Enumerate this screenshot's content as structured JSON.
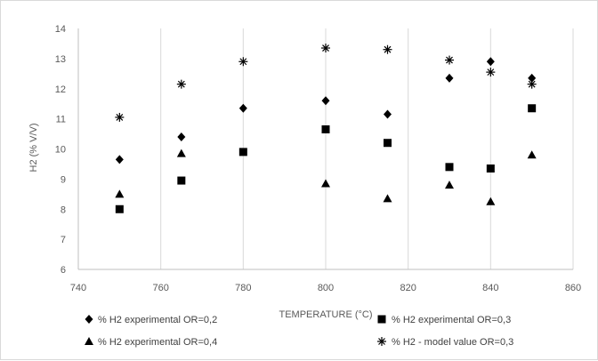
{
  "chart_data": {
    "type": "scatter",
    "title": "",
    "xlabel": "TEMPERATURE (°C)",
    "ylabel": "H2 (% V/V)",
    "xlim": [
      740,
      860
    ],
    "ylim": [
      6,
      14
    ],
    "x_ticks": [
      "740",
      "760",
      "780",
      "800",
      "820",
      "840",
      "860"
    ],
    "y_ticks": [
      "6",
      "7",
      "8",
      "9",
      "10",
      "11",
      "12",
      "13",
      "14"
    ],
    "grid": "vertical",
    "legend_position": "bottom",
    "series": [
      {
        "name": "% H2 experimental OR=0,2",
        "marker": "diamond",
        "color": "#000000",
        "points": [
          [
            750,
            9.65
          ],
          [
            765,
            10.4
          ],
          [
            780,
            11.35
          ],
          [
            800,
            11.6
          ],
          [
            815,
            11.15
          ],
          [
            830,
            12.35
          ],
          [
            840,
            12.9
          ],
          [
            850,
            12.35
          ]
        ]
      },
      {
        "name": "% H2 experimental OR=0,3",
        "marker": "square",
        "color": "#000000",
        "points": [
          [
            750,
            8.0
          ],
          [
            765,
            8.95
          ],
          [
            780,
            9.9
          ],
          [
            800,
            10.65
          ],
          [
            815,
            10.2
          ],
          [
            830,
            9.4
          ],
          [
            840,
            9.35
          ],
          [
            850,
            11.35
          ]
        ]
      },
      {
        "name": "% H2 experimental OR=0,4",
        "marker": "triangle",
        "color": "#000000",
        "points": [
          [
            750,
            8.5
          ],
          [
            765,
            9.85
          ],
          [
            800,
            8.85
          ],
          [
            815,
            8.35
          ],
          [
            830,
            8.8
          ],
          [
            840,
            8.25
          ],
          [
            850,
            9.8
          ]
        ]
      },
      {
        "name": "% H2 - model value OR=0,3",
        "marker": "asterisk",
        "color": "#000000",
        "points": [
          [
            750,
            11.05
          ],
          [
            765,
            12.15
          ],
          [
            780,
            12.9
          ],
          [
            800,
            13.35
          ],
          [
            815,
            13.3
          ],
          [
            830,
            12.95
          ],
          [
            840,
            12.55
          ],
          [
            850,
            12.15
          ]
        ]
      }
    ]
  }
}
